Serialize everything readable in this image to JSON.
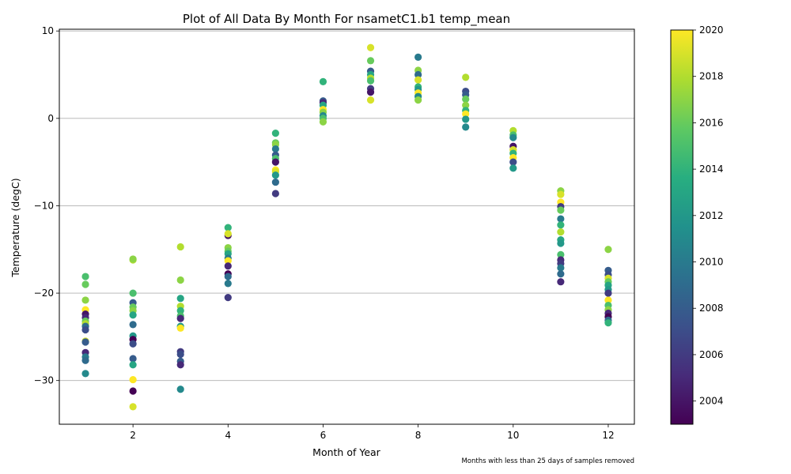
{
  "chart_data": {
    "type": "scatter",
    "title": "Plot of All Data By Month For nsametC1.b1 temp_mean",
    "xlabel": "Month of Year",
    "ylabel": "Temperature (degC)",
    "note": "Months with less than 25 days of samples removed",
    "xlim": [
      0.45,
      12.55
    ],
    "ylim": [
      -35,
      10.2
    ],
    "xticks": [
      2,
      4,
      6,
      8,
      10,
      12
    ],
    "yticks": [
      -30,
      -20,
      -10,
      0,
      10
    ],
    "grid": "horizontal",
    "colorbar": {
      "label_min": 2003,
      "label_max": 2020,
      "ticks": [
        2004,
        2006,
        2008,
        2010,
        2012,
        2014,
        2016,
        2018,
        2020
      ],
      "colormap": "viridis"
    },
    "points": [
      {
        "x": 1,
        "y": -18.1,
        "year": 2015
      },
      {
        "x": 1,
        "y": -19.0,
        "year": 2016
      },
      {
        "x": 1,
        "y": -20.8,
        "year": 2017
      },
      {
        "x": 1,
        "y": -21.9,
        "year": 2020
      },
      {
        "x": 1,
        "y": -22.4,
        "year": 2004
      },
      {
        "x": 1,
        "y": -22.8,
        "year": 2005
      },
      {
        "x": 1,
        "y": -23.2,
        "year": 2016
      },
      {
        "x": 1,
        "y": -23.5,
        "year": 2018
      },
      {
        "x": 1,
        "y": -23.8,
        "year": 2009
      },
      {
        "x": 1,
        "y": -24.2,
        "year": 2007
      },
      {
        "x": 1,
        "y": -25.5,
        "year": 2019
      },
      {
        "x": 1,
        "y": -25.6,
        "year": 2008
      },
      {
        "x": 1,
        "y": -26.8,
        "year": 2005
      },
      {
        "x": 1,
        "y": -27.3,
        "year": 2010
      },
      {
        "x": 1,
        "y": -27.7,
        "year": 2009
      },
      {
        "x": 1,
        "y": -29.2,
        "year": 2011
      },
      {
        "x": 2,
        "y": -16.2,
        "year": 2018
      },
      {
        "x": 2,
        "y": -16.1,
        "year": 2017
      },
      {
        "x": 2,
        "y": -20.0,
        "year": 2015
      },
      {
        "x": 2,
        "y": -21.1,
        "year": 2008
      },
      {
        "x": 2,
        "y": -21.6,
        "year": 2016
      },
      {
        "x": 2,
        "y": -22.0,
        "year": 2017
      },
      {
        "x": 2,
        "y": -22.5,
        "year": 2013
      },
      {
        "x": 2,
        "y": -23.6,
        "year": 2009
      },
      {
        "x": 2,
        "y": -24.9,
        "year": 2012
      },
      {
        "x": 2,
        "y": -25.3,
        "year": 2003
      },
      {
        "x": 2,
        "y": -25.8,
        "year": 2007
      },
      {
        "x": 2,
        "y": -27.5,
        "year": 2008
      },
      {
        "x": 2,
        "y": -28.2,
        "year": 2013
      },
      {
        "x": 2,
        "y": -29.9,
        "year": 2020
      },
      {
        "x": 2,
        "y": -31.2,
        "year": 2003
      },
      {
        "x": 2,
        "y": -33.0,
        "year": 2019
      },
      {
        "x": 3,
        "y": -14.7,
        "year": 2018
      },
      {
        "x": 3,
        "y": -18.5,
        "year": 2017
      },
      {
        "x": 3,
        "y": -20.6,
        "year": 2013
      },
      {
        "x": 3,
        "y": -21.5,
        "year": 2018
      },
      {
        "x": 3,
        "y": -22.0,
        "year": 2014
      },
      {
        "x": 3,
        "y": -22.6,
        "year": 2015
      },
      {
        "x": 3,
        "y": -22.9,
        "year": 2005
      },
      {
        "x": 3,
        "y": -23.8,
        "year": 2012
      },
      {
        "x": 3,
        "y": -24.0,
        "year": 2020
      },
      {
        "x": 3,
        "y": -26.7,
        "year": 2006
      },
      {
        "x": 3,
        "y": -27.0,
        "year": 2007
      },
      {
        "x": 3,
        "y": -27.8,
        "year": 2008
      },
      {
        "x": 3,
        "y": -28.2,
        "year": 2005
      },
      {
        "x": 3,
        "y": -31.0,
        "year": 2011
      },
      {
        "x": 4,
        "y": -12.5,
        "year": 2014
      },
      {
        "x": 4,
        "y": -13.4,
        "year": 2004
      },
      {
        "x": 4,
        "y": -13.2,
        "year": 2019
      },
      {
        "x": 4,
        "y": -14.8,
        "year": 2017
      },
      {
        "x": 4,
        "y": -15.2,
        "year": 2016
      },
      {
        "x": 4,
        "y": -15.5,
        "year": 2013
      },
      {
        "x": 4,
        "y": -16.0,
        "year": 2010
      },
      {
        "x": 4,
        "y": -16.3,
        "year": 2020
      },
      {
        "x": 4,
        "y": -16.9,
        "year": 2005
      },
      {
        "x": 4,
        "y": -17.8,
        "year": 2003
      },
      {
        "x": 4,
        "y": -18.1,
        "year": 2009
      },
      {
        "x": 4,
        "y": -18.9,
        "year": 2010
      },
      {
        "x": 4,
        "y": -20.5,
        "year": 2006
      },
      {
        "x": 5,
        "y": -1.7,
        "year": 2014
      },
      {
        "x": 5,
        "y": -2.8,
        "year": 2016
      },
      {
        "x": 5,
        "y": -3.0,
        "year": 2017
      },
      {
        "x": 5,
        "y": -3.5,
        "year": 2010
      },
      {
        "x": 5,
        "y": -4.2,
        "year": 2008
      },
      {
        "x": 5,
        "y": -4.6,
        "year": 2015
      },
      {
        "x": 5,
        "y": -5.0,
        "year": 2004
      },
      {
        "x": 5,
        "y": -5.9,
        "year": 2020
      },
      {
        "x": 5,
        "y": -6.1,
        "year": 2019
      },
      {
        "x": 5,
        "y": -6.5,
        "year": 2012
      },
      {
        "x": 5,
        "y": -7.3,
        "year": 2009
      },
      {
        "x": 5,
        "y": -8.6,
        "year": 2006
      },
      {
        "x": 6,
        "y": 4.2,
        "year": 2014
      },
      {
        "x": 6,
        "y": 2.0,
        "year": 2008
      },
      {
        "x": 6,
        "y": 1.8,
        "year": 2005
      },
      {
        "x": 6,
        "y": 1.5,
        "year": 2013
      },
      {
        "x": 6,
        "y": 1.0,
        "year": 2020
      },
      {
        "x": 6,
        "y": 0.7,
        "year": 2017
      },
      {
        "x": 6,
        "y": 0.3,
        "year": 2011
      },
      {
        "x": 6,
        "y": 0.0,
        "year": 2015
      },
      {
        "x": 6,
        "y": -0.4,
        "year": 2017
      },
      {
        "x": 7,
        "y": 8.1,
        "year": 2019
      },
      {
        "x": 7,
        "y": 6.6,
        "year": 2016
      },
      {
        "x": 7,
        "y": 5.4,
        "year": 2008
      },
      {
        "x": 7,
        "y": 5.0,
        "year": 2013
      },
      {
        "x": 7,
        "y": 4.6,
        "year": 2018
      },
      {
        "x": 7,
        "y": 4.3,
        "year": 2015
      },
      {
        "x": 7,
        "y": 3.4,
        "year": 2006
      },
      {
        "x": 7,
        "y": 3.0,
        "year": 2004
      },
      {
        "x": 7,
        "y": 2.1,
        "year": 2019
      },
      {
        "x": 8,
        "y": 7.0,
        "year": 2010
      },
      {
        "x": 8,
        "y": 5.5,
        "year": 2017
      },
      {
        "x": 8,
        "y": 5.0,
        "year": 2009
      },
      {
        "x": 8,
        "y": 4.4,
        "year": 2019
      },
      {
        "x": 8,
        "y": 3.6,
        "year": 2014
      },
      {
        "x": 8,
        "y": 3.3,
        "year": 2012
      },
      {
        "x": 8,
        "y": 2.9,
        "year": 2020
      },
      {
        "x": 8,
        "y": 2.5,
        "year": 2011
      },
      {
        "x": 8,
        "y": 2.1,
        "year": 2017
      },
      {
        "x": 9,
        "y": 4.7,
        "year": 2018
      },
      {
        "x": 9,
        "y": 3.1,
        "year": 2007
      },
      {
        "x": 9,
        "y": 2.7,
        "year": 2008
      },
      {
        "x": 9,
        "y": 2.2,
        "year": 2016
      },
      {
        "x": 9,
        "y": 1.5,
        "year": 2017
      },
      {
        "x": 9,
        "y": 0.9,
        "year": 2014
      },
      {
        "x": 9,
        "y": 0.5,
        "year": 2020
      },
      {
        "x": 9,
        "y": -0.1,
        "year": 2012
      },
      {
        "x": 9,
        "y": -1.0,
        "year": 2011
      },
      {
        "x": 10,
        "y": -1.4,
        "year": 2018
      },
      {
        "x": 10,
        "y": -1.9,
        "year": 2015
      },
      {
        "x": 10,
        "y": -2.2,
        "year": 2011
      },
      {
        "x": 10,
        "y": -3.2,
        "year": 2004
      },
      {
        "x": 10,
        "y": -3.6,
        "year": 2019
      },
      {
        "x": 10,
        "y": -4.0,
        "year": 2014
      },
      {
        "x": 10,
        "y": -4.5,
        "year": 2020
      },
      {
        "x": 10,
        "y": -5.0,
        "year": 2007
      },
      {
        "x": 10,
        "y": -5.7,
        "year": 2012
      },
      {
        "x": 11,
        "y": -8.3,
        "year": 2017
      },
      {
        "x": 11,
        "y": -8.7,
        "year": 2019
      },
      {
        "x": 11,
        "y": -9.6,
        "year": 2020
      },
      {
        "x": 11,
        "y": -10.1,
        "year": 2006
      },
      {
        "x": 11,
        "y": -10.5,
        "year": 2016
      },
      {
        "x": 11,
        "y": -11.5,
        "year": 2010
      },
      {
        "x": 11,
        "y": -12.2,
        "year": 2014
      },
      {
        "x": 11,
        "y": -13.0,
        "year": 2018
      },
      {
        "x": 11,
        "y": -13.9,
        "year": 2013
      },
      {
        "x": 11,
        "y": -14.3,
        "year": 2012
      },
      {
        "x": 11,
        "y": -15.6,
        "year": 2015
      },
      {
        "x": 11,
        "y": -16.2,
        "year": 2005
      },
      {
        "x": 11,
        "y": -16.6,
        "year": 2006
      },
      {
        "x": 11,
        "y": -17.1,
        "year": 2010
      },
      {
        "x": 11,
        "y": -17.8,
        "year": 2009
      },
      {
        "x": 11,
        "y": -18.7,
        "year": 2005
      },
      {
        "x": 12,
        "y": -15.0,
        "year": 2017
      },
      {
        "x": 12,
        "y": -17.4,
        "year": 2008
      },
      {
        "x": 12,
        "y": -17.9,
        "year": 2007
      },
      {
        "x": 12,
        "y": -18.3,
        "year": 2019
      },
      {
        "x": 12,
        "y": -18.7,
        "year": 2016
      },
      {
        "x": 12,
        "y": -19.1,
        "year": 2013
      },
      {
        "x": 12,
        "y": -19.6,
        "year": 2012
      },
      {
        "x": 12,
        "y": -20.0,
        "year": 2006
      },
      {
        "x": 12,
        "y": -20.8,
        "year": 2020
      },
      {
        "x": 12,
        "y": -21.4,
        "year": 2015
      },
      {
        "x": 12,
        "y": -21.9,
        "year": 2017
      },
      {
        "x": 12,
        "y": -22.3,
        "year": 2005
      },
      {
        "x": 12,
        "y": -22.7,
        "year": 2003
      },
      {
        "x": 12,
        "y": -23.1,
        "year": 2009
      },
      {
        "x": 12,
        "y": -23.4,
        "year": 2014
      }
    ]
  }
}
